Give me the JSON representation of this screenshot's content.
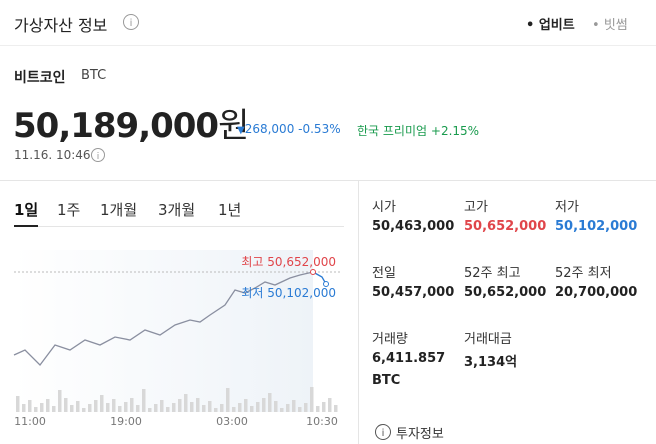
{
  "header": {
    "title": "가상자산 정보",
    "sources": [
      "업비트",
      "빗썸"
    ]
  },
  "asset": {
    "name": "비트코인",
    "symbol": "BTC",
    "price": "50,189,000",
    "currency": "원",
    "change": "268,000",
    "change_rate": "-0.53%",
    "premium_label": "한국 프리미엄",
    "premium": "+2.15%",
    "timestamp": "11.16. 10:46"
  },
  "chart": {
    "tabs": [
      "1일",
      "1주",
      "1개월",
      "3개월",
      "1년"
    ],
    "high_label": "최고",
    "high": "50,652,000",
    "low_label": "최저",
    "low": "50,102,000",
    "x_labels": [
      "11:00",
      "19:00",
      "03:00",
      "10:30"
    ]
  },
  "stats": [
    {
      "label": "시가",
      "value": "50,463,000"
    },
    {
      "label": "고가",
      "value": "50,652,000"
    },
    {
      "label": "저가",
      "value": "50,102,000"
    },
    {
      "label": "전일",
      "value": "50,457,000"
    },
    {
      "label": "52주 최고",
      "value": "50,652,000"
    },
    {
      "label": "52주 최저",
      "value": "20,700,000"
    },
    {
      "label": "거래량",
      "value": "6,411.857",
      "unit": "BTC"
    },
    {
      "label": "거래대금",
      "value": "3,134억"
    }
  ],
  "footer": {
    "link": "투자정보"
  }
}
